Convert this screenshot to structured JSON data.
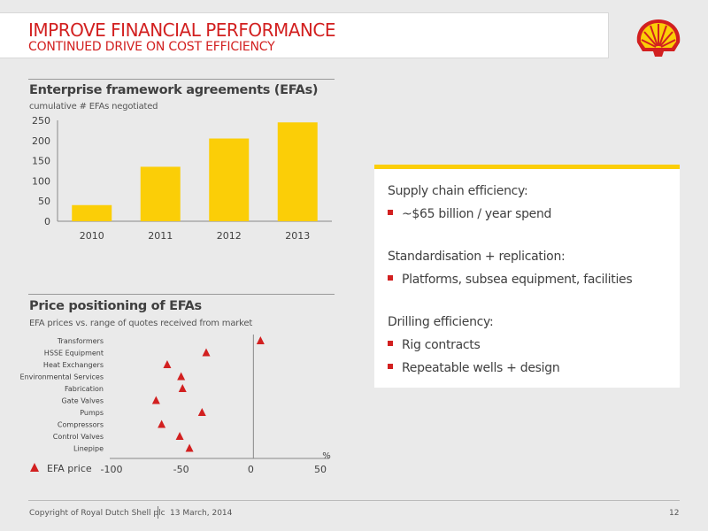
{
  "header": {
    "title": "IMPROVE FINANCIAL PERFORMANCE",
    "subtitle": "CONTINUED DRIVE ON COST EFFICIENCY"
  },
  "colors": {
    "accent_red": "#d22020",
    "accent_yellow": "#fbce07"
  },
  "icons": {
    "logo": "shell-pecten-logo"
  },
  "chart_data": [
    {
      "type": "bar",
      "title": "Enterprise framework agreements (EFAs)",
      "subtitle": "cumulative # EFAs negotiated",
      "categories": [
        "2010",
        "2011",
        "2012",
        "2013"
      ],
      "values": [
        40,
        135,
        205,
        245
      ],
      "ylim": [
        0,
        250
      ],
      "yticks": [
        0,
        50,
        100,
        150,
        200,
        250
      ],
      "xlabel": "",
      "ylabel": "",
      "grid": false,
      "color": "#fbce07"
    },
    {
      "type": "scatter",
      "title": "Price positioning of EFAs",
      "subtitle": "EFA prices vs. range of quotes received from market",
      "categories": [
        "Transformers",
        "HSSE Equipment",
        "Heat Exchangers",
        "Environmental Services",
        "Fabrication",
        "Gate Valves",
        "Pumps",
        "Compressors",
        "Control Valves",
        "Linepipe"
      ],
      "values": [
        7,
        -32,
        -60,
        -50,
        -49,
        -68,
        -35,
        -64,
        -51,
        -44
      ],
      "xlim": [
        -100,
        50
      ],
      "xticks": [
        -100,
        -50,
        0,
        50
      ],
      "xlabel": "%",
      "legend": {
        "label": "EFA price",
        "position": "bottom-left"
      },
      "marker": "triangle",
      "color": "#d22020"
    }
  ],
  "panel": {
    "sections": [
      {
        "heading": "Supply chain efficiency:",
        "items": [
          "~$65 billion / year spend"
        ]
      },
      {
        "heading": "Standardisation + replication:",
        "items": [
          "Platforms, subsea equipment, facilities"
        ]
      },
      {
        "heading": "Drilling efficiency:",
        "items": [
          "Rig contracts",
          "Repeatable wells + design"
        ]
      }
    ]
  },
  "footer": {
    "copyright": "Copyright of Royal Dutch Shell plc",
    "date": "13 March, 2014",
    "page": "12"
  }
}
